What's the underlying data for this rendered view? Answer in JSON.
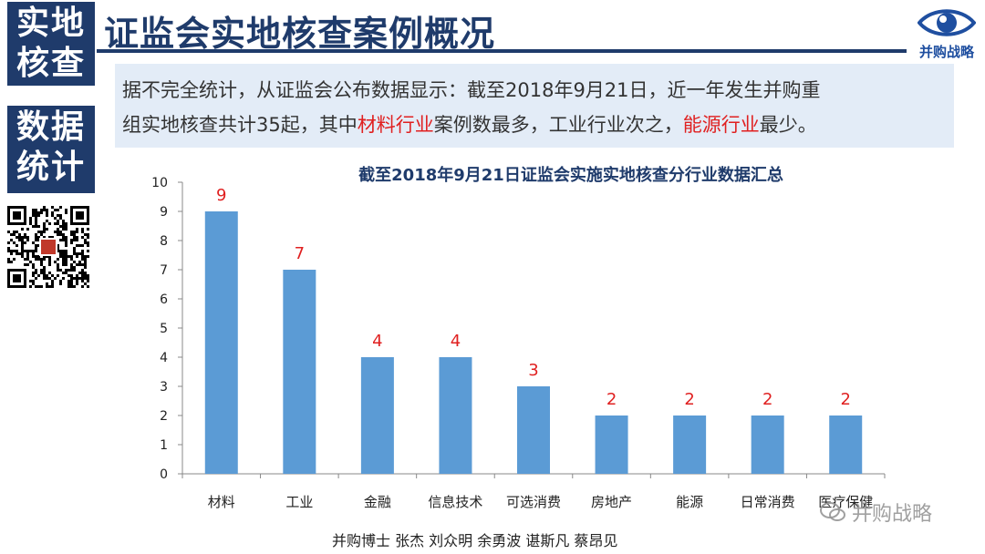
{
  "sidebar": {
    "top_line1": "实地",
    "top_line2": "核查",
    "mid_line1": "数据",
    "mid_line2": "统计"
  },
  "header": {
    "title": "证监会实地核查案例概况",
    "logo_text": "并购战略",
    "accent_color": "#1f3b6b"
  },
  "summary": {
    "line1": "据不完全统计，从证监会公布数据显示：截至2018年9月21日，近一年发生并购重",
    "line2_a": "组实地核查共计35起，其中",
    "line2_hl1": "材料行业",
    "line2_b": "案例数最多，工业行业次之，",
    "line2_hl2": "能源行业",
    "line2_c": "最少。",
    "highlight_color": "#e02020"
  },
  "chart_data": {
    "type": "bar",
    "title": "截至2018年9月21日证监会实施实地核查分行业数据汇总",
    "categories": [
      "材料",
      "工业",
      "金融",
      "信息技术",
      "可选消费",
      "房地产",
      "能源",
      "日常消费",
      "医疗保健"
    ],
    "values": [
      9,
      7,
      4,
      4,
      3,
      2,
      2,
      2,
      2
    ],
    "ylim": [
      0,
      10
    ],
    "yticks": [
      "0",
      "1",
      "2",
      "3",
      "4",
      "5",
      "6",
      "7",
      "8",
      "9",
      "10"
    ],
    "bar_color": "#5b9bd5",
    "label_color": "#e02020",
    "grid": false
  },
  "footer": {
    "authors": "并购博士  张杰 刘众明 余勇波 谌斯凡 蔡昂见",
    "watermark": "并购战略"
  }
}
